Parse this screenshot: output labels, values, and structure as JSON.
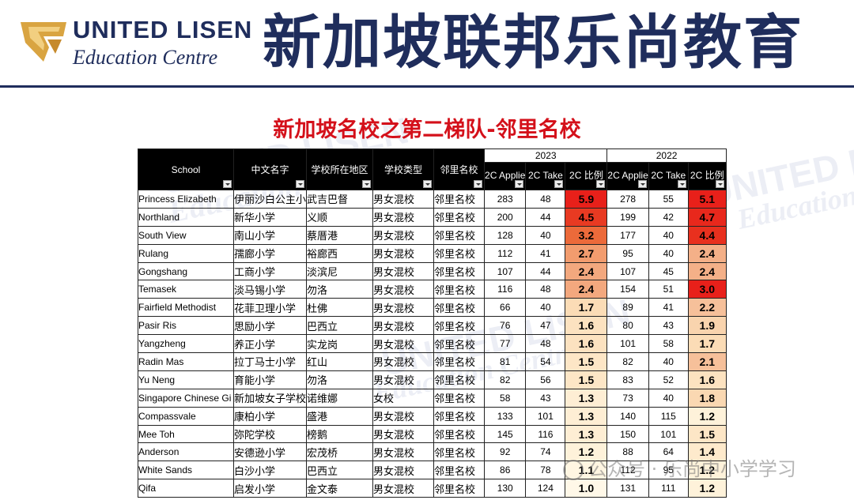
{
  "header": {
    "logo_title": "UNITED LISEN",
    "logo_subtitle": "Education Centre",
    "brand_cn": "新加坡联邦乐尚教育"
  },
  "slide_title": "新加坡名校之第二梯队-邻里名校",
  "watermark": {
    "text1": "UNITED LISEN",
    "text2": "Education Centre",
    "bottom": "公众号 · 乐尚中小学学习"
  },
  "table": {
    "headers": {
      "school": "School",
      "cn_name": "中文名字",
      "region": "学校所在地区",
      "type": "学校类型",
      "category": "邻里名校",
      "year_a": "2023",
      "year_b": "2022",
      "applied": "2C Applie",
      "taken": "2C Take",
      "ratio": "2C 比例",
      "applied_b": "2C Applie",
      "taken_b": "2C Take",
      "ratio_b": "2C 比例"
    },
    "rows": [
      {
        "school": "Princess Elizabeth",
        "cn": "伊丽沙白公主小",
        "region": "武吉巴督",
        "type": "男女混校",
        "cat": "邻里名校",
        "a23": "283",
        "t23": "48",
        "r23": "5.9",
        "a22": "278",
        "t22": "55",
        "r22": "5.1",
        "c23": "#e8201a",
        "c22": "#e8201a"
      },
      {
        "school": "Northland",
        "cn": "新华小学",
        "region": "义顺",
        "type": "男女混校",
        "cat": "邻里名校",
        "a23": "200",
        "t23": "44",
        "r23": "4.5",
        "a22": "199",
        "t22": "42",
        "r22": "4.7",
        "c23": "#e83a22",
        "c22": "#e8281c"
      },
      {
        "school": "South View",
        "cn": "南山小学",
        "region": "蔡厝港",
        "type": "男女混校",
        "cat": "邻里名校",
        "a23": "128",
        "t23": "40",
        "r23": "3.2",
        "a22": "177",
        "t22": "40",
        "r22": "4.4",
        "c23": "#ec6a3a",
        "c22": "#e8301e"
      },
      {
        "school": "Rulang",
        "cn": "孺廊小学",
        "region": "裕廊西",
        "type": "男女混校",
        "cat": "邻里名校",
        "a23": "112",
        "t23": "41",
        "r23": "2.7",
        "a22": "95",
        "t22": "40",
        "r22": "2.4",
        "c23": "#f29c6e",
        "c22": "#f4b088"
      },
      {
        "school": "Gongshang",
        "cn": "工商小学",
        "region": "淡滨尼",
        "type": "男女混校",
        "cat": "邻里名校",
        "a23": "107",
        "t23": "44",
        "r23": "2.4",
        "a22": "107",
        "t22": "45",
        "r22": "2.4",
        "c23": "#f3a87e",
        "c22": "#f4b088"
      },
      {
        "school": "Temasek",
        "cn": "淡马锡小学",
        "region": "勿洛",
        "type": "男女混校",
        "cat": "邻里名校",
        "a23": "116",
        "t23": "48",
        "r23": "2.4",
        "a22": "154",
        "t22": "51",
        "r22": "3.0",
        "c23": "#f3a87e",
        "c22": "#e8201a"
      },
      {
        "school": "Fairfield Methodist",
        "cn": "花菲卫理小学",
        "region": "杜佛",
        "type": "男女混校",
        "cat": "邻里名校",
        "a23": "66",
        "t23": "40",
        "r23": "1.7",
        "a22": "89",
        "t22": "41",
        "r22": "2.2",
        "c23": "#fbdcb6",
        "c22": "#f6c09a"
      },
      {
        "school": "Pasir Ris",
        "cn": "思励小学",
        "region": "巴西立",
        "type": "男女混校",
        "cat": "邻里名校",
        "a23": "76",
        "t23": "47",
        "r23": "1.6",
        "a22": "80",
        "t22": "43",
        "r22": "1.9",
        "c23": "#fce2c0",
        "c22": "#f9d4ae"
      },
      {
        "school": "Yangzheng",
        "cn": "养正小学",
        "region": "实龙岗",
        "type": "男女混校",
        "cat": "邻里名校",
        "a23": "77",
        "t23": "48",
        "r23": "1.6",
        "a22": "101",
        "t22": "58",
        "r22": "1.7",
        "c23": "#fce2c0",
        "c22": "#fbdcb6"
      },
      {
        "school": "Radin Mas",
        "cn": "拉丁马士小学",
        "region": "红山",
        "type": "男女混校",
        "cat": "邻里名校",
        "a23": "81",
        "t23": "54",
        "r23": "1.5",
        "a22": "82",
        "t22": "40",
        "r22": "2.1",
        "c23": "#fde6c6",
        "c22": "#f6c09a"
      },
      {
        "school": "Yu Neng",
        "cn": "育能小学",
        "region": "勿洛",
        "type": "男女混校",
        "cat": "邻里名校",
        "a23": "82",
        "t23": "56",
        "r23": "1.5",
        "a22": "83",
        "t22": "52",
        "r22": "1.6",
        "c23": "#fde6c6",
        "c22": "#fce2c0"
      },
      {
        "school": "Singapore Chinese Gi",
        "cn": "新加坡女子学校",
        "region": "诺维娜",
        "type": "女校",
        "cat": "邻里名校",
        "a23": "58",
        "t23": "43",
        "r23": "1.3",
        "a22": "73",
        "t22": "40",
        "r22": "1.8",
        "c23": "#feeed4",
        "c22": "#fad8b2"
      },
      {
        "school": "Compassvale",
        "cn": "康柏小学",
        "region": "盛港",
        "type": "男女混校",
        "cat": "邻里名校",
        "a23": "133",
        "t23": "101",
        "r23": "1.3",
        "a22": "140",
        "t22": "115",
        "r22": "1.2",
        "c23": "#feeed4",
        "c22": "#fef2da"
      },
      {
        "school": "Mee Toh",
        "cn": "弥陀学校",
        "region": "榜鹅",
        "type": "男女混校",
        "cat": "邻里名校",
        "a23": "145",
        "t23": "116",
        "r23": "1.3",
        "a22": "150",
        "t22": "101",
        "r22": "1.5",
        "c23": "#feeed4",
        "c22": "#fde6c6"
      },
      {
        "school": "Anderson",
        "cn": "安德逊小学",
        "region": "宏茂桥",
        "type": "男女混校",
        "cat": "邻里名校",
        "a23": "92",
        "t23": "74",
        "r23": "1.2",
        "a22": "88",
        "t22": "64",
        "r22": "1.4",
        "c23": "#fef2da",
        "c22": "#feeacc"
      },
      {
        "school": "White Sands",
        "cn": "白沙小学",
        "region": "巴西立",
        "type": "男女混校",
        "cat": "邻里名校",
        "a23": "86",
        "t23": "78",
        "r23": "1.1",
        "a22": "112",
        "t22": "95",
        "r22": "1.2",
        "c23": "#fff6e2",
        "c22": "#fef2da"
      },
      {
        "school": "Qifa",
        "cn": "启发小学",
        "region": "金文泰",
        "type": "男女混校",
        "cat": "邻里名校",
        "a23": "130",
        "t23": "124",
        "r23": "1.0",
        "a22": "131",
        "t22": "111",
        "r22": "1.2",
        "c23": "#fff8e8",
        "c22": "#fef2da"
      }
    ]
  },
  "colors": {
    "brand_navy": "#1f2d5c",
    "title_red": "#d4101a",
    "logo_gold": "#d9a441"
  }
}
